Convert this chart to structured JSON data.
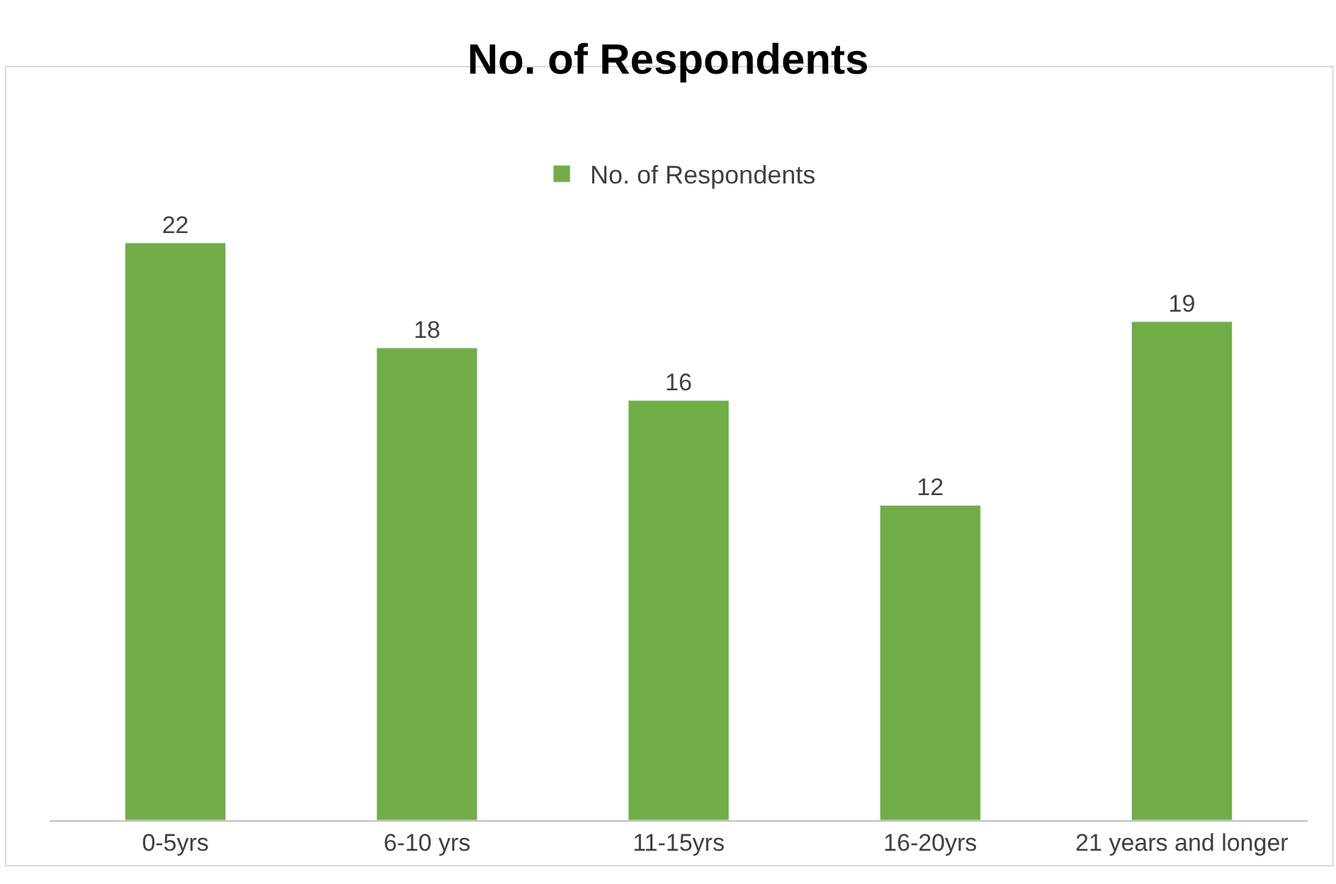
{
  "chart_data": {
    "type": "bar",
    "title": "No. of Respondents",
    "categories": [
      "0-5yrs",
      "6-10 yrs",
      "11-15yrs",
      "16-20yrs",
      "21 years and longer"
    ],
    "series": [
      {
        "name": "No. of Respondents",
        "color": "#70ad47",
        "values": [
          22,
          18,
          16,
          12,
          19
        ]
      }
    ],
    "data_labels": true,
    "legend": "top"
  }
}
